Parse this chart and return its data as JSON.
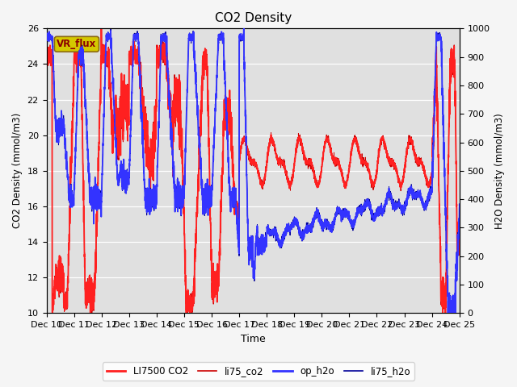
{
  "title": "CO2 Density",
  "xlabel": "Time",
  "ylabel_left": "CO2 Density (mmol/m3)",
  "ylabel_right": "H2O Density (mmol/m3)",
  "ylim_left": [
    10,
    26
  ],
  "ylim_right": [
    0,
    1000
  ],
  "xlim": [
    0,
    360
  ],
  "xtick_positions": [
    0,
    24,
    48,
    72,
    96,
    120,
    144,
    168,
    192,
    216,
    240,
    264,
    288,
    312,
    336,
    360
  ],
  "xtick_labels": [
    "Dec 10",
    "Dec 11",
    "Dec 12",
    "Dec 13",
    "Dec 14",
    "Dec 15",
    "Dec 16",
    "Dec 17",
    "Dec 18",
    "Dec 19",
    "Dec 20",
    "Dec 21",
    "Dec 22",
    "Dec 23",
    "Dec 24",
    "Dec 25"
  ],
  "bg_color": "#e0e0e0",
  "fig_bg_color": "#f5f5f5",
  "annotation_text": "VR_flux",
  "annotation_bg": "#d4c800",
  "annotation_edge": "#8B6914",
  "li7500_color": "#ff2020",
  "li75_co2_color": "#cc0000",
  "op_h2o_color": "#3333ff",
  "li75_h2o_color": "#000099",
  "grid_color": "#ffffff",
  "yticks_left": [
    10,
    12,
    14,
    16,
    18,
    20,
    22,
    24,
    26
  ],
  "yticks_right": [
    0,
    100,
    200,
    300,
    400,
    500,
    600,
    700,
    800,
    900,
    1000
  ]
}
